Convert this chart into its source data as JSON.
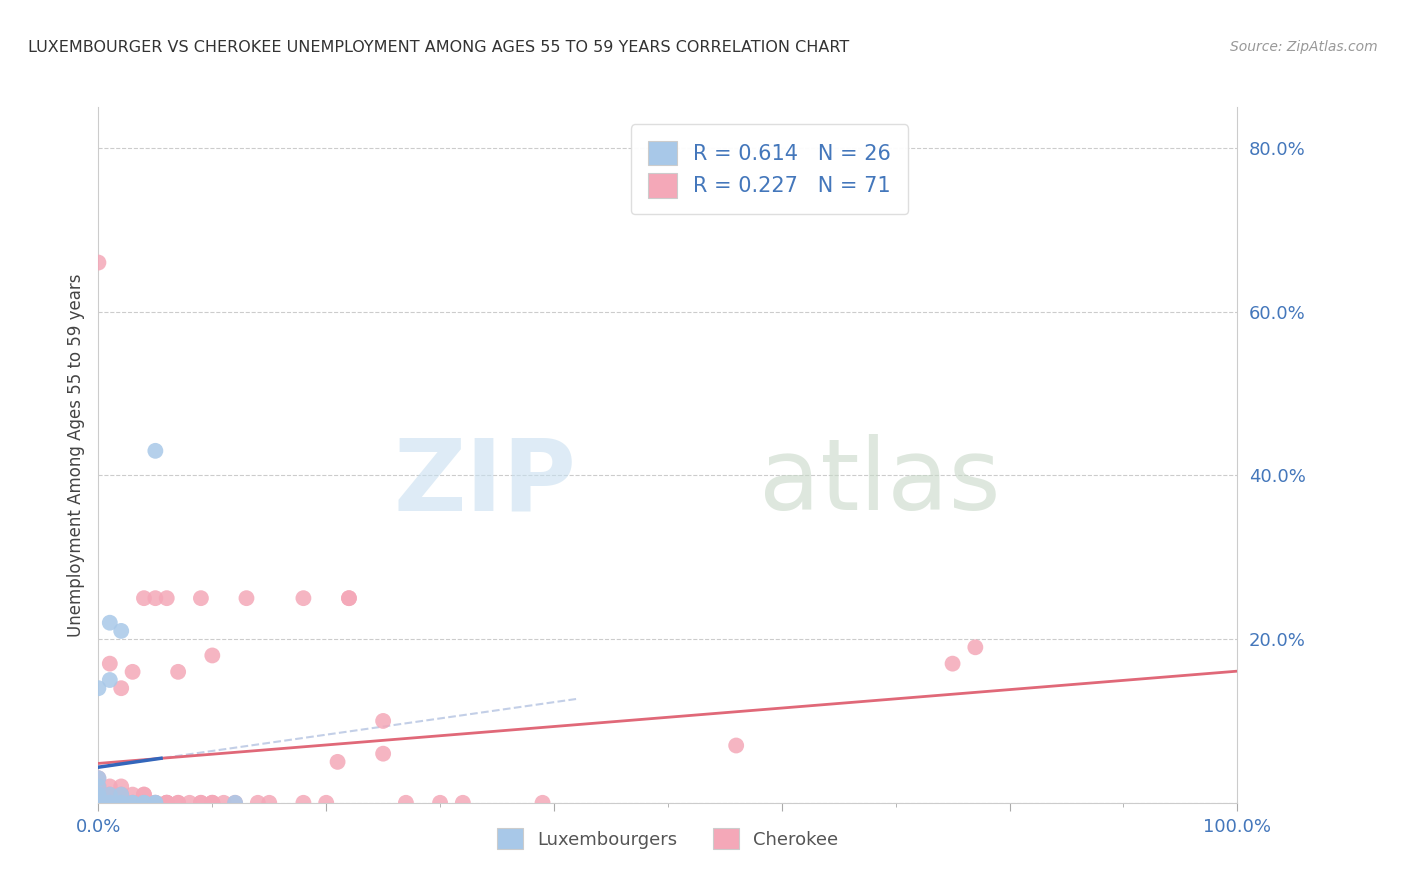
{
  "title": "LUXEMBOURGER VS CHEROKEE UNEMPLOYMENT AMONG AGES 55 TO 59 YEARS CORRELATION CHART",
  "source": "Source: ZipAtlas.com",
  "ylabel": "Unemployment Among Ages 55 to 59 years",
  "xlim": [
    0.0,
    1.0
  ],
  "ylim": [
    0.0,
    0.85
  ],
  "xticks": [
    0.0,
    0.2,
    0.4,
    0.6,
    0.8,
    1.0
  ],
  "xticklabels": [
    "0.0%",
    "",
    "",
    "",
    "",
    "100.0%"
  ],
  "yticks": [
    0.0,
    0.2,
    0.4,
    0.6,
    0.8
  ],
  "yticklabels": [
    "",
    "20.0%",
    "40.0%",
    "60.0%",
    "80.0%"
  ],
  "luxembourger_color": "#a8c8e8",
  "cherokee_color": "#f4a8b8",
  "luxembourger_trend_color": "#3366bb",
  "cherokee_trend_color": "#e06878",
  "luxembourger_R": 0.614,
  "luxembourger_N": 26,
  "cherokee_R": 0.227,
  "cherokee_N": 71,
  "luxembourger_x": [
    0.0,
    0.0,
    0.0,
    0.0,
    0.0,
    0.0,
    0.0,
    0.0,
    0.01,
    0.01,
    0.01,
    0.01,
    0.01,
    0.01,
    0.02,
    0.02,
    0.02,
    0.02,
    0.03,
    0.03,
    0.04,
    0.04,
    0.05,
    0.05,
    0.05,
    0.12
  ],
  "luxembourger_y": [
    0.0,
    0.0,
    0.0,
    0.01,
    0.01,
    0.02,
    0.03,
    0.14,
    0.0,
    0.0,
    0.0,
    0.01,
    0.15,
    0.22,
    0.0,
    0.0,
    0.01,
    0.21,
    0.0,
    0.0,
    0.0,
    0.0,
    0.0,
    0.0,
    0.43,
    0.0
  ],
  "cherokee_x": [
    0.0,
    0.0,
    0.0,
    0.0,
    0.0,
    0.0,
    0.0,
    0.0,
    0.01,
    0.01,
    0.01,
    0.01,
    0.01,
    0.01,
    0.01,
    0.02,
    0.02,
    0.02,
    0.02,
    0.02,
    0.02,
    0.03,
    0.03,
    0.03,
    0.03,
    0.04,
    0.04,
    0.04,
    0.04,
    0.04,
    0.05,
    0.05,
    0.05,
    0.05,
    0.06,
    0.06,
    0.06,
    0.06,
    0.06,
    0.06,
    0.07,
    0.07,
    0.07,
    0.08,
    0.09,
    0.09,
    0.09,
    0.1,
    0.1,
    0.1,
    0.1,
    0.11,
    0.12,
    0.13,
    0.14,
    0.15,
    0.18,
    0.18,
    0.2,
    0.21,
    0.22,
    0.22,
    0.25,
    0.25,
    0.27,
    0.3,
    0.32,
    0.39,
    0.56,
    0.75,
    0.77
  ],
  "cherokee_y": [
    0.0,
    0.0,
    0.0,
    0.01,
    0.01,
    0.02,
    0.03,
    0.66,
    0.0,
    0.0,
    0.0,
    0.01,
    0.01,
    0.02,
    0.17,
    0.0,
    0.0,
    0.01,
    0.01,
    0.02,
    0.14,
    0.0,
    0.0,
    0.01,
    0.16,
    0.0,
    0.0,
    0.01,
    0.01,
    0.25,
    0.0,
    0.0,
    0.0,
    0.25,
    0.0,
    0.0,
    0.0,
    0.0,
    0.0,
    0.25,
    0.0,
    0.0,
    0.16,
    0.0,
    0.0,
    0.0,
    0.25,
    0.0,
    0.0,
    0.0,
    0.18,
    0.0,
    0.0,
    0.25,
    0.0,
    0.0,
    0.0,
    0.25,
    0.0,
    0.05,
    0.25,
    0.25,
    0.06,
    0.1,
    0.0,
    0.0,
    0.0,
    0.0,
    0.07,
    0.17,
    0.19
  ]
}
